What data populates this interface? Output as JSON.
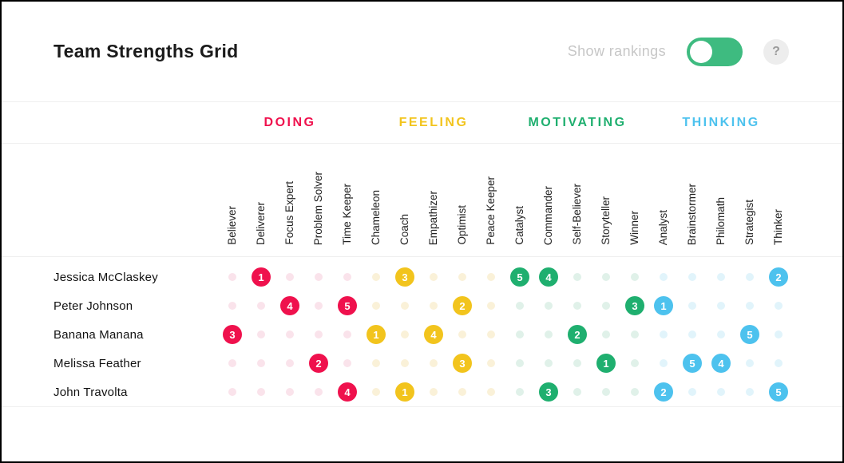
{
  "header": {
    "title": "Team Strengths Grid",
    "toggle_label": "Show rankings",
    "toggle_state": "on",
    "help_label": "?"
  },
  "colors": {
    "toggle_green": "#3EBB80",
    "doing": "#EF114D",
    "feeling": "#F2C41D",
    "motivating": "#1FAF6F",
    "thinking": "#4DC2EE"
  },
  "categories": [
    {
      "name": "DOING",
      "color": "#EF114D",
      "dot_color": "#FAE3EB",
      "columns": [
        "Believer",
        "Deliverer",
        "Focus Expert",
        "Problem Solver",
        "Time Keeper"
      ]
    },
    {
      "name": "FEELING",
      "color": "#F2C41D",
      "dot_color": "#FAF1D8",
      "columns": [
        "Chameleon",
        "Coach",
        "Empathizer",
        "Optimist",
        "Peace Keeper"
      ]
    },
    {
      "name": "MOTIVATING",
      "color": "#1FAF6F",
      "dot_color": "#E0F1E9",
      "columns": [
        "Catalyst",
        "Commander",
        "Self-Believer",
        "Storyteller",
        "Winner"
      ]
    },
    {
      "name": "THINKING",
      "color": "#4DC2EE",
      "dot_color": "#E1F4FB",
      "columns": [
        "Analyst",
        "Brainstormer",
        "Philomath",
        "Strategist",
        "Thinker"
      ]
    }
  ],
  "rows": [
    {
      "name": "Jessica McClaskey",
      "rankings": {
        "Deliverer": 1,
        "Coach": 3,
        "Catalyst": 5,
        "Commander": 4,
        "Thinker": 2
      }
    },
    {
      "name": "Peter Johnson",
      "rankings": {
        "Focus Expert": 4,
        "Time Keeper": 5,
        "Optimist": 2,
        "Winner": 3,
        "Analyst": 1
      }
    },
    {
      "name": "Banana Manana",
      "rankings": {
        "Believer": 3,
        "Chameleon": 1,
        "Empathizer": 4,
        "Self-Believer": 2,
        "Strategist": 5
      }
    },
    {
      "name": "Melissa Feather",
      "rankings": {
        "Problem Solver": 2,
        "Optimist": 3,
        "Storyteller": 1,
        "Brainstormer": 5,
        "Philomath": 4
      }
    },
    {
      "name": "John Travolta",
      "rankings": {
        "Time Keeper": 4,
        "Coach": 1,
        "Commander": 3,
        "Analyst": 2,
        "Thinker": 5
      }
    }
  ]
}
